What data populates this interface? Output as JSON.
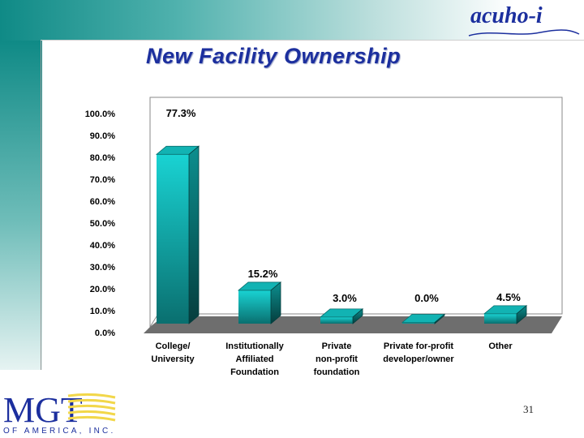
{
  "header": {
    "brand": "acuho-i"
  },
  "slide": {
    "title": "New Facility Ownership",
    "page_number": "31"
  },
  "footer": {
    "logo_text": "MGT",
    "logo_subtext": "OF AMERICA, INC."
  },
  "colors": {
    "title": "#1c2f9e",
    "bar_front": "#19d3d3",
    "bar_dark": "#0a6f6f",
    "floor": "#6e6e6e"
  },
  "chart_data": {
    "type": "bar",
    "title": "",
    "xlabel": "",
    "ylabel": "",
    "categories": [
      [
        "College/",
        "University"
      ],
      [
        "Institutionally",
        "Affiliated",
        "Foundation"
      ],
      [
        "Private",
        "non-profit",
        "foundation"
      ],
      [
        "Private for-profit",
        "developer/owner"
      ],
      [
        "Other"
      ]
    ],
    "values": [
      77.3,
      15.2,
      3.0,
      0.0,
      4.5
    ],
    "data_labels": [
      "77.3%",
      "15.2%",
      "3.0%",
      "0.0%",
      "4.5%"
    ],
    "ylim": [
      0,
      100
    ],
    "yticks": [
      "0.0%",
      "10.0%",
      "20.0%",
      "30.0%",
      "40.0%",
      "50.0%",
      "60.0%",
      "70.0%",
      "80.0%",
      "90.0%",
      "100.0%"
    ],
    "grid": false,
    "legend": "none"
  }
}
